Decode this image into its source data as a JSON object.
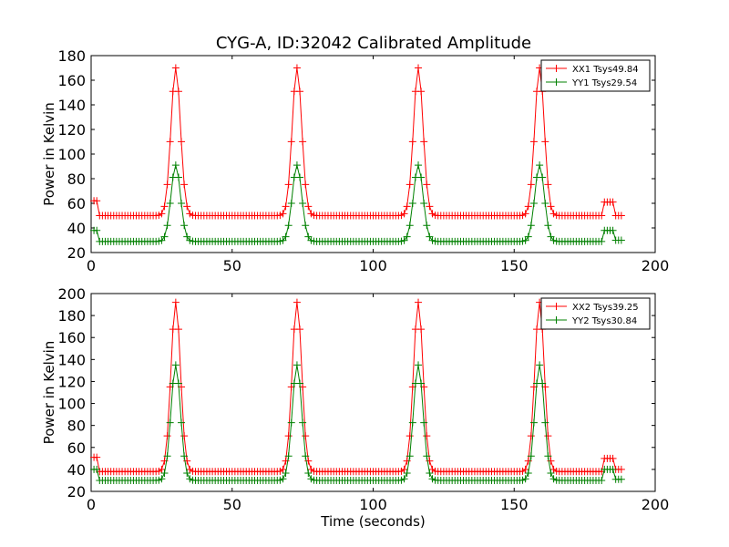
{
  "chart_data": [
    {
      "type": "line",
      "title": "CYG-A, ID:32042 Calibrated Amplitude",
      "xlabel": "",
      "ylabel": "Power in Kelvin",
      "xlim": [
        0,
        200
      ],
      "ylim": [
        20,
        180
      ],
      "xticks": [
        0,
        50,
        100,
        150,
        200
      ],
      "yticks": [
        20,
        40,
        60,
        80,
        100,
        120,
        140,
        160,
        180
      ],
      "legend_position": "top-right",
      "marker": "+",
      "series": [
        {
          "name": "XX1 Tsys49.84",
          "color": "#ff0000",
          "base": 50,
          "peak": 170,
          "start_level": 62,
          "end_level": 61,
          "tail_level": 50
        },
        {
          "name": "YY1 Tsys29.54",
          "color": "#008000",
          "base": 29,
          "peak": 91,
          "start_level": 38,
          "end_level": 38,
          "tail_level": 30
        }
      ]
    },
    {
      "type": "line",
      "title": "",
      "xlabel": "Time (seconds)",
      "ylabel": "Power in Kelvin",
      "xlim": [
        0,
        200
      ],
      "ylim": [
        20,
        200
      ],
      "xticks": [
        0,
        50,
        100,
        150,
        200
      ],
      "yticks": [
        20,
        40,
        60,
        80,
        100,
        120,
        140,
        160,
        180,
        200
      ],
      "legend_position": "top-right",
      "marker": "+",
      "series": [
        {
          "name": "XX2 Tsys39.25",
          "color": "#ff0000",
          "base": 38,
          "peak": 192,
          "start_level": 51,
          "end_level": 50,
          "tail_level": 40
        },
        {
          "name": "YY2 Tsys30.84",
          "color": "#008000",
          "base": 30,
          "peak": 135,
          "start_level": 40,
          "end_level": 40,
          "tail_level": 31
        }
      ]
    }
  ],
  "signal": {
    "x_start": 1,
    "x_end": 188,
    "peak_centers": [
      30,
      73,
      116,
      159
    ],
    "peak_width": 1.7,
    "blip_start": 182,
    "blip_end": 185
  }
}
